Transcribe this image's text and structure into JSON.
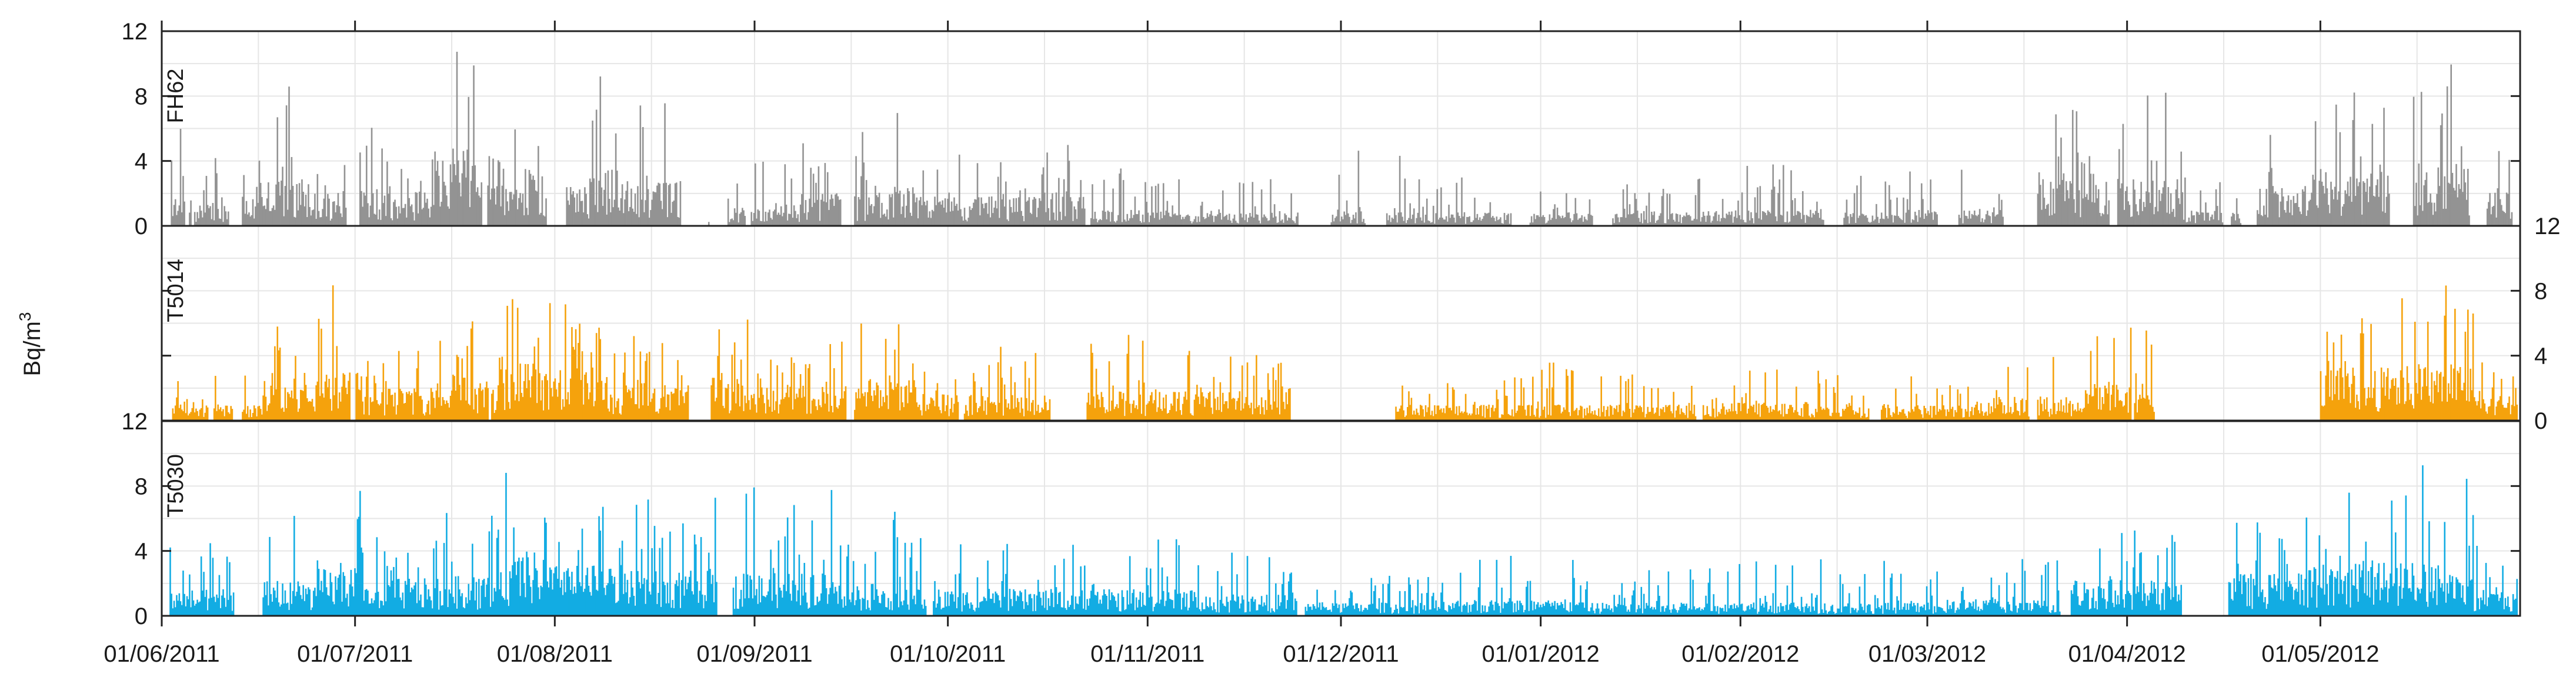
{
  "chart_data": {
    "type": "bar",
    "ylabel": "Bq/m",
    "ylabel_superscript": "3",
    "x_tick_labels": [
      "01/06/2011",
      "01/07/2011",
      "01/08/2011",
      "01/09/2011",
      "01/10/2011",
      "01/11/2011",
      "01/12/2011",
      "01/01/2012",
      "01/02/2012",
      "01/03/2012",
      "01/04/2012",
      "01/05/2012"
    ],
    "x_range": [
      "01/06/2011",
      "31/05/2012"
    ],
    "grid": true,
    "panels": [
      {
        "name": "FH62",
        "color": "#939393",
        "ylim": [
          0,
          12
        ],
        "y_ticks": [
          0,
          4,
          8,
          12
        ],
        "tick_side": "left",
        "gaps": [
          [
            3,
            6
          ],
          [
            18,
            21
          ],
          [
            52,
            54
          ],
          [
            143,
            153
          ],
          [
            248,
            252
          ],
          [
            424,
            438
          ],
          [
            452,
            456
          ],
          [
            526,
            536
          ],
          [
            715,
            719
          ],
          [
            880,
            905
          ],
          [
            932,
            948
          ],
          [
            1045,
            1059
          ],
          [
            1108,
            1123
          ],
          [
            1287,
            1302
          ],
          [
            1375,
            1391
          ],
          [
            1426,
            1452
          ],
          [
            1508,
            1514
          ],
          [
            1596,
            1602
          ],
          [
            1610,
            1622
          ],
          [
            1725,
            1743
          ],
          [
            1787,
            1800
          ],
          [
            2045,
            2056
          ]
        ],
        "segments": [
          {
            "from": 7,
            "to": 23,
            "peak": 6.5,
            "base": 1.0
          },
          {
            "from": 25,
            "to": 52,
            "peak": 4.2,
            "base": 0.8
          },
          {
            "from": 62,
            "to": 85,
            "peak": 4.3,
            "base": 1.1
          },
          {
            "from": 85,
            "to": 110,
            "peak": 9.7,
            "base": 1.8
          },
          {
            "from": 110,
            "to": 142,
            "peak": 4.0,
            "base": 1.3
          },
          {
            "from": 142,
            "to": 168,
            "peak": 6.2,
            "base": 1.4
          },
          {
            "from": 168,
            "to": 208,
            "peak": 5.5,
            "base": 1.3
          },
          {
            "from": 208,
            "to": 262,
            "peak": 11.4,
            "base": 2.8
          },
          {
            "from": 262,
            "to": 298,
            "peak": 6.3,
            "base": 1.9
          },
          {
            "from": 313,
            "to": 345,
            "peak": 9.6,
            "base": 1.8
          },
          {
            "from": 345,
            "to": 402,
            "peak": 8.2,
            "base": 1.7
          },
          {
            "from": 423,
            "to": 494,
            "peak": 4.0,
            "base": 0.8
          },
          {
            "from": 494,
            "to": 550,
            "peak": 5.8,
            "base": 1.2
          },
          {
            "from": 550,
            "to": 588,
            "peak": 7.8,
            "base": 1.5
          },
          {
            "from": 588,
            "to": 660,
            "peak": 4.5,
            "base": 1.1
          },
          {
            "from": 660,
            "to": 718,
            "peak": 5.0,
            "base": 1.1
          },
          {
            "from": 718,
            "to": 780,
            "peak": 3.6,
            "base": 0.6
          },
          {
            "from": 780,
            "to": 900,
            "peak": 3.0,
            "base": 0.5
          },
          {
            "from": 900,
            "to": 960,
            "peak": 4.7,
            "base": 0.6
          },
          {
            "from": 960,
            "to": 1080,
            "peak": 3.0,
            "base": 0.5
          },
          {
            "from": 1080,
            "to": 1180,
            "peak": 2.6,
            "base": 0.5
          },
          {
            "from": 1180,
            "to": 1270,
            "peak": 3.8,
            "base": 0.6
          },
          {
            "from": 1270,
            "to": 1350,
            "peak": 3.2,
            "base": 0.5
          },
          {
            "from": 1350,
            "to": 1395,
            "peak": 3.7,
            "base": 0.6
          },
          {
            "from": 1395,
            "to": 1450,
            "peak": 2.2,
            "base": 0.6
          },
          {
            "from": 1450,
            "to": 1520,
            "peak": 8.0,
            "base": 2.0
          },
          {
            "from": 1520,
            "to": 1565,
            "peak": 8.5,
            "base": 1.8
          },
          {
            "from": 1565,
            "to": 1610,
            "peak": 3.5,
            "base": 0.6
          },
          {
            "from": 1610,
            "to": 1665,
            "peak": 5.8,
            "base": 1.5
          },
          {
            "from": 1665,
            "to": 1735,
            "peak": 8.3,
            "base": 2.2
          },
          {
            "from": 1735,
            "to": 1788,
            "peak": 11.2,
            "base": 2.4
          },
          {
            "from": 1788,
            "to": 1820,
            "peak": 5.2,
            "base": 1.3
          }
        ]
      },
      {
        "name": "T5014",
        "color": "#f5a20c",
        "ylim": [
          0,
          12
        ],
        "y_ticks": [
          0,
          4,
          8,
          12
        ],
        "tick_side": "right",
        "gaps": [
          [
            2,
            8
          ],
          [
            36,
            40
          ],
          [
            55,
            62
          ],
          [
            146,
            150
          ],
          [
            253,
            255
          ],
          [
            408,
            425
          ],
          [
            530,
            536
          ],
          [
            617,
            621
          ],
          [
            688,
            716
          ],
          [
            874,
            955
          ],
          [
            1188,
            1193
          ],
          [
            1322,
            1331
          ],
          [
            1446,
            1452
          ],
          [
            1525,
            1527
          ],
          [
            1543,
            1671
          ]
        ],
        "segments": [
          {
            "from": 2,
            "to": 32,
            "peak": 4.4,
            "base": 1.0
          },
          {
            "from": 32,
            "to": 78,
            "peak": 2.8,
            "base": 0.6
          },
          {
            "from": 78,
            "to": 120,
            "peak": 6.0,
            "base": 1.4
          },
          {
            "from": 120,
            "to": 155,
            "peak": 8.5,
            "base": 1.8
          },
          {
            "from": 155,
            "to": 210,
            "peak": 4.8,
            "base": 1.2
          },
          {
            "from": 210,
            "to": 265,
            "peak": 6.4,
            "base": 1.6
          },
          {
            "from": 265,
            "to": 300,
            "peak": 8.7,
            "base": 2.2
          },
          {
            "from": 300,
            "to": 345,
            "peak": 7.5,
            "base": 2.0
          },
          {
            "from": 345,
            "to": 408,
            "peak": 5.5,
            "base": 1.4
          },
          {
            "from": 425,
            "to": 470,
            "peak": 6.5,
            "base": 1.6
          },
          {
            "from": 470,
            "to": 530,
            "peak": 5.2,
            "base": 1.3
          },
          {
            "from": 536,
            "to": 585,
            "peak": 6.8,
            "base": 1.6
          },
          {
            "from": 585,
            "to": 640,
            "peak": 3.3,
            "base": 1.0
          },
          {
            "from": 640,
            "to": 700,
            "peak": 4.6,
            "base": 1.0
          },
          {
            "from": 700,
            "to": 770,
            "peak": 5.3,
            "base": 1.1
          },
          {
            "from": 770,
            "to": 874,
            "peak": 4.6,
            "base": 1.1
          },
          {
            "from": 955,
            "to": 1060,
            "peak": 2.7,
            "base": 0.6
          },
          {
            "from": 1060,
            "to": 1200,
            "peak": 3.6,
            "base": 0.6
          },
          {
            "from": 1200,
            "to": 1320,
            "peak": 3.2,
            "base": 0.7
          },
          {
            "from": 1320,
            "to": 1405,
            "peak": 2.8,
            "base": 0.6
          },
          {
            "from": 1405,
            "to": 1455,
            "peak": 3.8,
            "base": 0.9
          },
          {
            "from": 1455,
            "to": 1490,
            "peak": 4.0,
            "base": 0.9
          },
          {
            "from": 1490,
            "to": 1543,
            "peak": 6.5,
            "base": 1.5
          },
          {
            "from": 1671,
            "to": 1730,
            "peak": 6.8,
            "base": 2.0
          },
          {
            "from": 1730,
            "to": 1790,
            "peak": 8.6,
            "base": 2.2
          },
          {
            "from": 1790,
            "to": 1824,
            "peak": 4.2,
            "base": 1.0
          }
        ]
      },
      {
        "name": "T5030",
        "color": "#12ace3",
        "ylim": [
          0,
          12
        ],
        "y_ticks": [
          0,
          4,
          8,
          12
        ],
        "tick_side": "left",
        "gaps": [
          [
            2,
            6
          ],
          [
            56,
            78
          ],
          [
            430,
            442
          ],
          [
            592,
            597
          ],
          [
            879,
            885
          ],
          [
            1470,
            1478
          ],
          [
            1564,
            1600
          ]
        ],
        "segments": [
          {
            "from": 6,
            "to": 56,
            "peak": 4.6,
            "base": 1.0
          },
          {
            "from": 78,
            "to": 120,
            "peak": 6.3,
            "base": 1.3
          },
          {
            "from": 120,
            "to": 155,
            "peak": 8.3,
            "base": 1.8
          },
          {
            "from": 155,
            "to": 210,
            "peak": 5.0,
            "base": 1.4
          },
          {
            "from": 210,
            "to": 262,
            "peak": 6.6,
            "base": 1.5
          },
          {
            "from": 262,
            "to": 300,
            "peak": 9.4,
            "base": 2.4
          },
          {
            "from": 300,
            "to": 360,
            "peak": 7.0,
            "base": 1.9
          },
          {
            "from": 360,
            "to": 430,
            "peak": 7.8,
            "base": 1.7
          },
          {
            "from": 442,
            "to": 520,
            "peak": 8.8,
            "base": 1.6
          },
          {
            "from": 520,
            "to": 580,
            "peak": 6.5,
            "base": 1.2
          },
          {
            "from": 580,
            "to": 650,
            "peak": 5.0,
            "base": 1.0
          },
          {
            "from": 650,
            "to": 720,
            "peak": 4.5,
            "base": 1.0
          },
          {
            "from": 720,
            "to": 800,
            "peak": 5.0,
            "base": 1.0
          },
          {
            "from": 800,
            "to": 879,
            "peak": 4.0,
            "base": 0.8
          },
          {
            "from": 885,
            "to": 1000,
            "peak": 2.6,
            "base": 0.5
          },
          {
            "from": 1000,
            "to": 1100,
            "peak": 4.0,
            "base": 0.6
          },
          {
            "from": 1100,
            "to": 1220,
            "peak": 3.0,
            "base": 0.5
          },
          {
            "from": 1220,
            "to": 1380,
            "peak": 3.5,
            "base": 0.5
          },
          {
            "from": 1380,
            "to": 1470,
            "peak": 3.6,
            "base": 0.6
          },
          {
            "from": 1478,
            "to": 1520,
            "peak": 6.0,
            "base": 1.4
          },
          {
            "from": 1520,
            "to": 1564,
            "peak": 5.7,
            "base": 1.3
          },
          {
            "from": 1600,
            "to": 1660,
            "peak": 6.5,
            "base": 1.6
          },
          {
            "from": 1660,
            "to": 1740,
            "peak": 7.8,
            "base": 2.0
          },
          {
            "from": 1740,
            "to": 1790,
            "peak": 9.6,
            "base": 2.0
          },
          {
            "from": 1790,
            "to": 1824,
            "peak": 4.5,
            "base": 1.0
          }
        ]
      }
    ]
  }
}
